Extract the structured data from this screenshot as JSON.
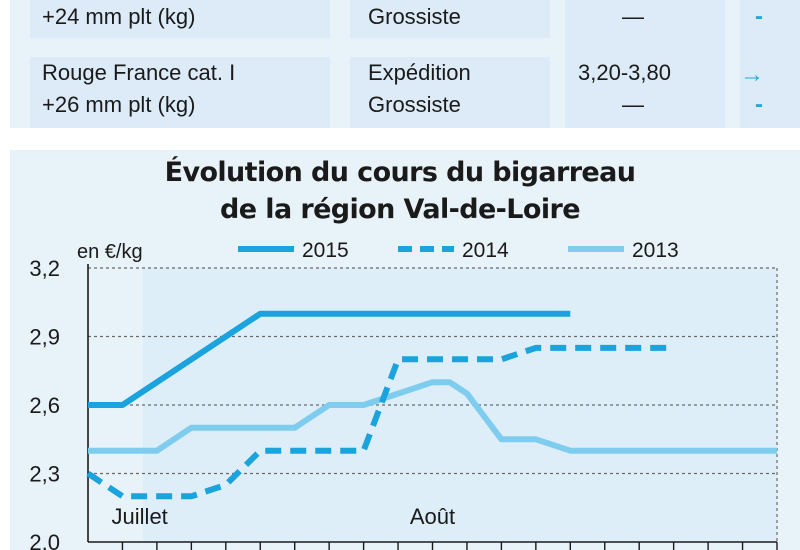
{
  "table": {
    "rows": [
      {
        "product": [
          "+24 mm plt (kg)"
        ],
        "stages": [
          "Grossiste"
        ],
        "price": [
          "—"
        ],
        "trend": [
          "-"
        ]
      },
      {
        "product": [
          "Rouge France cat. I",
          "+26 mm plt (kg)"
        ],
        "stages": [
          "Expédition",
          "Grossiste"
        ],
        "price": [
          "3,20-3,80",
          "—"
        ],
        "trend": [
          "→",
          "-"
        ]
      }
    ]
  },
  "chart_data": {
    "type": "line",
    "title": "Évolution du cours du bigarreau de la région Val-de-Loire",
    "title_lines": [
      "Évolution du cours du bigarreau",
      "de la région Val-de-Loire"
    ],
    "ylabel": "en €/kg",
    "ylim": [
      2.0,
      3.2
    ],
    "yticks": [
      2.0,
      2.3,
      2.6,
      2.9,
      3.2
    ],
    "ytick_labels": [
      "2,0",
      "2,3",
      "2,6",
      "2,9",
      "3,2"
    ],
    "x_labels": [
      {
        "text": "Juillet",
        "x": 1.5
      },
      {
        "text": "Août",
        "x": 10
      }
    ],
    "x_ticks": [
      1,
      2,
      3,
      4,
      5,
      6,
      7,
      8,
      9,
      10,
      11,
      12,
      13,
      14,
      15,
      16,
      17,
      18,
      19,
      20
    ],
    "xlim": [
      0,
      20
    ],
    "series": [
      {
        "name": "2015",
        "color": "#1aa3dc",
        "style": "solid",
        "x": [
          0,
          1,
          5,
          14
        ],
        "y": [
          2.6,
          2.6,
          3.0,
          3.0
        ]
      },
      {
        "name": "2014",
        "color": "#1aa3dc",
        "style": "dashed",
        "x": [
          0,
          1,
          2,
          3,
          4,
          5,
          6,
          7,
          8,
          9,
          10,
          11,
          12,
          13,
          14,
          15,
          16,
          17
        ],
        "y": [
          2.3,
          2.2,
          2.2,
          2.2,
          2.25,
          2.4,
          2.4,
          2.4,
          2.4,
          2.8,
          2.8,
          2.8,
          2.8,
          2.85,
          2.85,
          2.85,
          2.85,
          2.85
        ]
      },
      {
        "name": "2013",
        "color": "#7fcdee",
        "style": "solid",
        "x": [
          0,
          1,
          2,
          3,
          4,
          5,
          6,
          7,
          8,
          9,
          10,
          10.5,
          11,
          12,
          13,
          14,
          15,
          16,
          17,
          18,
          19,
          20
        ],
        "y": [
          2.4,
          2.4,
          2.4,
          2.5,
          2.5,
          2.5,
          2.5,
          2.6,
          2.6,
          2.65,
          2.7,
          2.7,
          2.65,
          2.45,
          2.45,
          2.4,
          2.4,
          2.4,
          2.4,
          2.4,
          2.4,
          2.4
        ]
      }
    ],
    "legend": "top",
    "grid": true
  }
}
